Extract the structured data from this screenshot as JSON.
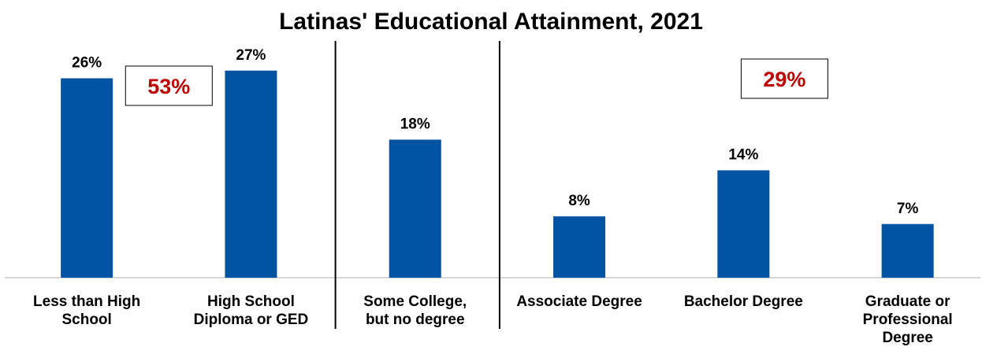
{
  "chart_data": {
    "type": "bar",
    "title": "Latinas' Educational Attainment, 2021",
    "categories": [
      [
        "Less than High",
        "School"
      ],
      [
        "High School",
        "Diploma or GED"
      ],
      [
        "Some College,",
        "but no degree"
      ],
      [
        "Associate Degree"
      ],
      [
        "Bachelor Degree"
      ],
      [
        "Graduate or",
        "Professional",
        "Degree"
      ]
    ],
    "values": [
      26,
      27,
      18,
      8,
      14,
      7
    ],
    "value_labels": [
      "26%",
      "27%",
      "18%",
      "8%",
      "14%",
      "7%"
    ],
    "unit": "%",
    "ylim": [
      0,
      36
    ],
    "grid": false,
    "legend": "none",
    "bar_color": "#0054a3",
    "group_separators_after": [
      1,
      2
    ],
    "callouts": [
      {
        "text": "53%",
        "color": "#c00000",
        "covers": [
          0,
          1
        ]
      },
      {
        "text": "29%",
        "color": "#c00000",
        "covers": [
          3,
          4,
          5
        ]
      }
    ]
  }
}
